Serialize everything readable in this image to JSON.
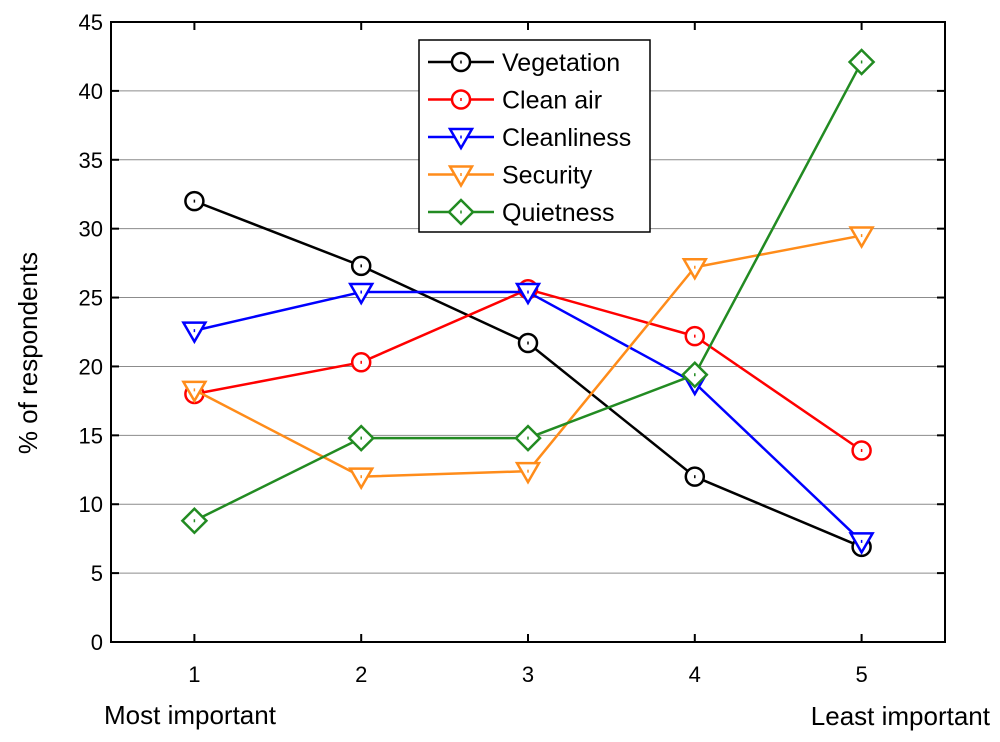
{
  "chart_data": {
    "type": "line",
    "title": "",
    "ylabel": "% of respondents",
    "x_end_labels": {
      "left": "Most important",
      "right": "Least important"
    },
    "x": [
      1,
      2,
      3,
      4,
      5
    ],
    "x_tick_labels": [
      "1",
      "2",
      "3",
      "4",
      "5"
    ],
    "xlim": [
      0.5,
      5.5
    ],
    "ylim": [
      0,
      45
    ],
    "y_ticks": [
      0,
      5,
      10,
      15,
      20,
      25,
      30,
      35,
      40,
      45
    ],
    "grid": "horizontal",
    "legend_position": "top-center",
    "series": [
      {
        "name": "Vegetation",
        "color": "#000000",
        "marker": "circle",
        "values": [
          32.0,
          27.3,
          21.7,
          12.0,
          6.9
        ]
      },
      {
        "name": "Clean air",
        "color": "#ff0000",
        "marker": "circle",
        "values": [
          18.0,
          20.3,
          25.6,
          22.2,
          13.9
        ]
      },
      {
        "name": "Cleanliness",
        "color": "#0000ff",
        "marker": "triangle-down",
        "values": [
          22.6,
          25.4,
          25.4,
          18.8,
          7.3
        ]
      },
      {
        "name": "Security",
        "color": "#ff8c1a",
        "marker": "triangle-down",
        "values": [
          18.3,
          12.0,
          12.4,
          27.2,
          29.5
        ]
      },
      {
        "name": "Quietness",
        "color": "#228b22",
        "marker": "diamond",
        "values": [
          8.8,
          14.8,
          14.8,
          19.4,
          42.1
        ]
      }
    ]
  }
}
